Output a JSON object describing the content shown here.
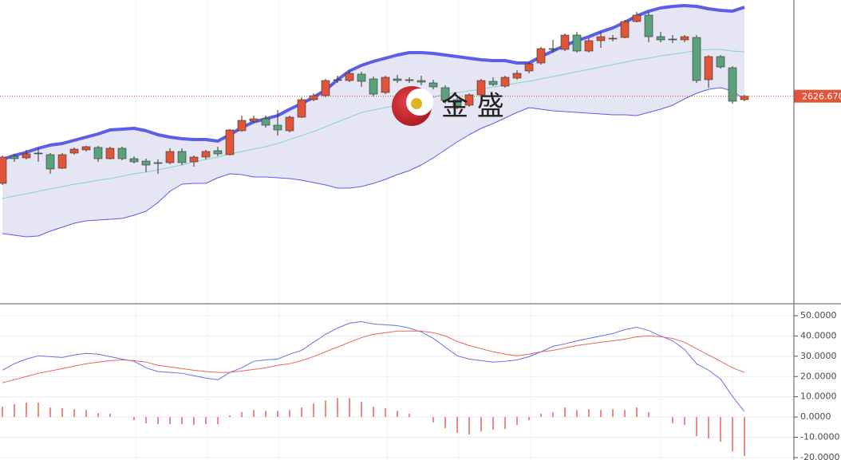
{
  "chart_data": [
    {
      "type": "candlestick",
      "categories": [
        null,
        null,
        null,
        null,
        null,
        null,
        null,
        null,
        null,
        null,
        null,
        null,
        null,
        null,
        null,
        null,
        null,
        null,
        null,
        null,
        null,
        null,
        null,
        null,
        null,
        null,
        null,
        null,
        null,
        null,
        null,
        null,
        null,
        null,
        null,
        null,
        null,
        null,
        null,
        null,
        null,
        null,
        null,
        null,
        null,
        null,
        null,
        null,
        null,
        null,
        null,
        null,
        null,
        null,
        null,
        null,
        null,
        null,
        null,
        null,
        null,
        null,
        null
      ],
      "open": [
        2572,
        2589,
        2588,
        2591,
        2590,
        2581.5,
        2591,
        2593,
        2594.5,
        2587.5,
        2594,
        2587.5,
        2586,
        2585,
        2585,
        2592,
        2585.5,
        2588.5,
        2592.5,
        2590,
        2605,
        2611,
        2612.5,
        2608.5,
        2605,
        2613.5,
        2624.5,
        2627,
        2637,
        2636.5,
        2640.5,
        2637.5,
        2629,
        2637.5,
        2637,
        2636.5,
        2635,
        2632,
        2624.5,
        2621,
        2627.5,
        2636,
        2633,
        2638,
        2642.5,
        2647.5,
        2656.5,
        2656,
        2665,
        2655,
        2661.5,
        2662.5,
        2663.5,
        2673.5,
        2677.5,
        2664,
        2662.5,
        2662,
        2663.5,
        2637,
        2651.5,
        2644.5,
        2624.5
      ],
      "high": [
        2589.5,
        2590.5,
        2593,
        2594,
        2591,
        2591,
        2594.5,
        2595.5,
        2595.5,
        2595,
        2595,
        2589,
        2587.5,
        2587,
        2594,
        2594,
        2589.5,
        2593,
        2595,
        2606,
        2614.5,
        2614.5,
        2614.5,
        2618,
        2614.5,
        2626,
        2628.5,
        2637.5,
        2639.5,
        2643,
        2642,
        2639,
        2639.5,
        2640,
        2638.5,
        2639.5,
        2637,
        2633.5,
        2627,
        2628.5,
        2637.5,
        2638.5,
        2639.5,
        2643,
        2648,
        2657.5,
        2662,
        2666,
        2667,
        2663,
        2667,
        2665,
        2674.5,
        2679.5,
        2679.5,
        2667,
        2665,
        2665,
        2665,
        2652.5,
        2652.5,
        2645.5,
        2627.5
      ],
      "low": [
        2571,
        2585.5,
        2587,
        2585.5,
        2578,
        2581,
        2590,
        2592,
        2585.5,
        2587,
        2586.5,
        2584.5,
        2579,
        2578,
        2584,
        2583.5,
        2582.5,
        2587,
        2589,
        2589.5,
        2604.5,
        2610,
        2607,
        2602,
        2604,
        2613,
        2623.5,
        2626,
        2635,
        2635.5,
        2632.5,
        2626.5,
        2628,
        2635,
        2635,
        2633.5,
        2631,
        2622,
        2618.5,
        2620,
        2626.5,
        2633,
        2632,
        2637,
        2641,
        2646.5,
        2654,
        2655,
        2654,
        2654,
        2657,
        2661,
        2663,
        2673,
        2660.5,
        2660.5,
        2660,
        2660.5,
        2635,
        2632,
        2644,
        2622,
        2623.5
      ],
      "close": [
        2588.5,
        2587.5,
        2590.5,
        2590.5,
        2581,
        2590,
        2593.5,
        2595,
        2587.5,
        2594,
        2587.5,
        2585.5,
        2583.5,
        2584.5,
        2592,
        2585,
        2588.5,
        2592,
        2590.5,
        2605.5,
        2611.5,
        2612.5,
        2608.5,
        2605.5,
        2613.5,
        2624.5,
        2627,
        2636.5,
        2636.5,
        2641,
        2636,
        2628,
        2638.5,
        2636.5,
        2636.5,
        2635.5,
        2632.5,
        2624,
        2620.5,
        2627.5,
        2636.5,
        2634,
        2638.5,
        2641,
        2647,
        2656.5,
        2656,
        2665,
        2655,
        2661.5,
        2664,
        2663,
        2673.5,
        2677.5,
        2664,
        2662,
        2662,
        2664,
        2636.5,
        2651.5,
        2645,
        2623.5,
        2626.67
      ],
      "up_color": "#e0553a",
      "down_color": "#5aa27c",
      "bands": [
        {
          "color": "#5a5ee8",
          "values": [
            2587,
            2589.5,
            2591.5,
            2594,
            2596,
            2597,
            2599,
            2601,
            2603,
            2605.5,
            2606,
            2606.5,
            2605,
            2602.5,
            2601,
            2600,
            2599.5,
            2599.5,
            2598.5,
            2602.5,
            2607,
            2610.5,
            2612.5,
            2614.5,
            2618.5,
            2622,
            2626,
            2630.5,
            2637,
            2642.5,
            2646,
            2648.5,
            2650.5,
            2652.5,
            2654,
            2654,
            2653.5,
            2652.5,
            2651.5,
            2650.5,
            2649.5,
            2649,
            2649,
            2647.5,
            2647.5,
            2651.5,
            2655,
            2658.5,
            2661.5,
            2664,
            2667,
            2669.5,
            2673,
            2677,
            2680,
            2682,
            2683,
            2683.5,
            2683,
            2681.5,
            2680.5,
            2680,
            2682.5
          ]
        },
        {
          "color": "#7fd8c4",
          "values": [
            2562.5,
            2564,
            2565.5,
            2567,
            2568.5,
            2570,
            2571.5,
            2572.5,
            2574,
            2575,
            2576.5,
            2578,
            2579,
            2580.5,
            2582,
            2583.5,
            2585.5,
            2587,
            2588.5,
            2590.5,
            2592,
            2593.5,
            2595,
            2597,
            2599.5,
            2602,
            2604.5,
            2607.5,
            2610.5,
            2613.5,
            2616.5,
            2618,
            2619.5,
            2621,
            2623,
            2624.5,
            2626,
            2628,
            2629,
            2630,
            2631,
            2632.5,
            2633.5,
            2635,
            2636,
            2637.5,
            2639,
            2640.5,
            2642,
            2643.5,
            2645,
            2646.5,
            2648,
            2649.5,
            2650.5,
            2652,
            2653,
            2654,
            2655.5,
            2656,
            2656,
            2655,
            2654.5
          ]
        },
        {
          "color": "#5a5ee8",
          "values": [
            2540.5,
            2539.5,
            2538.5,
            2539,
            2542,
            2544.5,
            2547,
            2548.5,
            2549,
            2549.5,
            2550,
            2552,
            2554.5,
            2560,
            2567,
            2571.5,
            2572,
            2572,
            2575.5,
            2578,
            2577.5,
            2576,
            2576,
            2575.5,
            2575,
            2574,
            2572.5,
            2571,
            2569,
            2569,
            2570,
            2572,
            2574.5,
            2577.5,
            2580,
            2583.5,
            2588,
            2593,
            2598,
            2602.5,
            2606.5,
            2609.5,
            2613,
            2616.5,
            2619.5,
            2618.5,
            2617.5,
            2617,
            2616.5,
            2616,
            2615.5,
            2615,
            2615,
            2614.5,
            2616.5,
            2618.5,
            2621,
            2625,
            2628.5,
            2631,
            2632,
            2630,
            2624.5
          ]
        }
      ],
      "band_fill": "#e5e5f3",
      "ylim": [
        2497,
        2687
      ],
      "last_price": {
        "value": 2626.67,
        "label": "2626.670"
      },
      "watermark": "金 盛"
    },
    {
      "type": "macd",
      "series": [
        {
          "color": "#6b6fe0",
          "kind": "line",
          "values": [
            23.1,
            26.3,
            28.6,
            30.2,
            29.8,
            29.4,
            30.6,
            31.4,
            31.0,
            29.8,
            28.6,
            27.5,
            24.3,
            22.4,
            22.0,
            21.6,
            20.4,
            19.2,
            18.4,
            22.0,
            24.3,
            27.5,
            28.2,
            28.6,
            31.0,
            32.9,
            36.9,
            40.8,
            43.9,
            46.3,
            47.1,
            45.9,
            45.5,
            45.1,
            43.9,
            42.0,
            38.8,
            34.5,
            30.2,
            28.6,
            27.8,
            27.1,
            27.5,
            28.2,
            29.8,
            32.2,
            34.9,
            36.1,
            37.6,
            38.8,
            40.0,
            41.2,
            43.1,
            44.3,
            42.7,
            40.0,
            37.6,
            33.3,
            26.3,
            23.1,
            18.8,
            10.2,
            2.7
          ]
        },
        {
          "color": "#e8675a",
          "kind": "line",
          "values": [
            16.9,
            18.4,
            20.0,
            21.6,
            22.7,
            23.9,
            25.1,
            26.3,
            27.1,
            27.8,
            28.2,
            27.8,
            27.1,
            25.5,
            24.7,
            23.9,
            23.1,
            22.4,
            22.0,
            22.0,
            22.7,
            23.5,
            24.3,
            25.5,
            26.3,
            27.8,
            29.8,
            32.2,
            34.5,
            36.9,
            39.2,
            40.8,
            41.6,
            42.4,
            42.4,
            42.4,
            41.6,
            40.0,
            37.3,
            35.3,
            33.7,
            32.2,
            31.0,
            30.2,
            31.0,
            32.2,
            32.9,
            34.1,
            35.3,
            36.1,
            36.9,
            37.6,
            38.4,
            39.6,
            40.0,
            39.6,
            38.8,
            36.9,
            33.7,
            30.6,
            27.5,
            24.3,
            22.0
          ]
        },
        {
          "color": "#f08a80",
          "kind": "bar",
          "values": [
            5.1,
            6.3,
            7.1,
            7.1,
            4.7,
            4.3,
            3.9,
            3.5,
            2.0,
            1.6,
            0,
            -1.6,
            -3.1,
            -3.5,
            -3.5,
            -3.5,
            -3.9,
            -3.5,
            -3.5,
            0.8,
            2.4,
            3.5,
            3.1,
            3.1,
            3.5,
            4.7,
            6.7,
            8.2,
            9.4,
            9.4,
            7.5,
            5.1,
            4.3,
            3.1,
            1.6,
            0,
            -2.7,
            -5.5,
            -7.8,
            -8.6,
            -7.1,
            -6.3,
            -5.9,
            -3.9,
            -1.6,
            1.6,
            2.4,
            4.7,
            3.5,
            3.9,
            3.5,
            3.9,
            3.5,
            4.7,
            2.4,
            0,
            -3.1,
            -3.9,
            -9.4,
            -10.6,
            -12.2,
            -16.9,
            -19.2
          ]
        }
      ],
      "ylim": [
        -21.2,
        55.5
      ],
      "yticks": [
        {
          "value": 50,
          "label": "50.0000"
        },
        {
          "value": 40,
          "label": "40.0000"
        },
        {
          "value": 30,
          "label": "30.0000"
        },
        {
          "value": 20,
          "label": "20.0000"
        },
        {
          "value": 10,
          "label": "10.0000"
        },
        {
          "value": 0,
          "label": "0.0000"
        },
        {
          "value": -10,
          "label": "-10.0000"
        },
        {
          "value": -20,
          "label": "-20.0000"
        }
      ],
      "grid": true
    }
  ]
}
